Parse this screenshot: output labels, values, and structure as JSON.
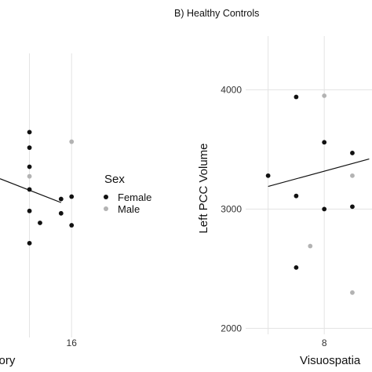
{
  "panel_b_title": "B) Healthy Controls",
  "legend": {
    "title": "Sex",
    "items": [
      {
        "label": "Female",
        "color": "#111111"
      },
      {
        "label": "Male",
        "color": "#b3b3b3"
      }
    ]
  },
  "chart_data": [
    {
      "type": "scatter",
      "panel": "A",
      "title": "",
      "xlabel": "mory",
      "ylabel": "",
      "x_ticks": [
        16
      ],
      "xlim": [
        9.2,
        17.4
      ],
      "ylim": [
        1900,
        4280
      ],
      "grid": true,
      "legend_position": "right",
      "series": [
        {
          "name": "Female",
          "color": "#111111",
          "points": [
            [
              12,
              3620
            ],
            [
              12,
              3490
            ],
            [
              12,
              3330
            ],
            [
              12,
              3140
            ],
            [
              12,
              2960
            ],
            [
              12,
              2690
            ],
            [
              13,
              2860
            ],
            [
              15,
              3060
            ],
            [
              15,
              2940
            ],
            [
              16,
              3080
            ],
            [
              16,
              2840
            ]
          ]
        },
        {
          "name": "Male",
          "color": "#b3b3b3",
          "points": [
            [
              12,
              3250
            ],
            [
              16,
              3540
            ]
          ]
        }
      ],
      "trend_line": [
        [
          9.2,
          3230
        ],
        [
          15,
          3030
        ]
      ]
    },
    {
      "type": "scatter",
      "panel": "B",
      "title": "B) Healthy Controls",
      "xlabel": "Visuospatia",
      "ylabel": "Left PCC Volume",
      "x_ticks": [
        8
      ],
      "y_ticks": [
        2000,
        3000,
        4000
      ],
      "xlim": [
        5.2,
        9.7
      ],
      "ylim": [
        1950,
        4450
      ],
      "grid": true,
      "series": [
        {
          "name": "Female",
          "color": "#111111",
          "points": [
            [
              6,
              3280
            ],
            [
              7,
              3940
            ],
            [
              7,
              3110
            ],
            [
              7,
              2510
            ],
            [
              8,
              3560
            ],
            [
              8,
              3000
            ],
            [
              9,
              3470
            ],
            [
              9,
              3020
            ]
          ]
        },
        {
          "name": "Male",
          "color": "#b3b3b3",
          "points": [
            [
              7.5,
              2690
            ],
            [
              8,
              3950
            ],
            [
              9,
              3280
            ],
            [
              9,
              2300
            ]
          ]
        }
      ],
      "trend_line": [
        [
          6,
          3190
        ],
        [
          9.6,
          3420
        ]
      ]
    }
  ]
}
